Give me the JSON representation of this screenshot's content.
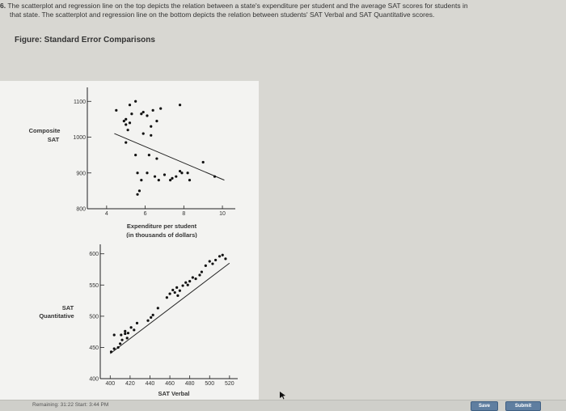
{
  "question": {
    "number": "6.",
    "line1": "The scatterplot and regression line on the top depicts the relation between a state's expenditure per student and the average SAT scores for students in",
    "line2": "that state. The scatterplot and regression line on the bottom depicts the relation between students' SAT Verbal and SAT Quantitative scores."
  },
  "figure_title": "Figure: Standard Error Comparisons",
  "chart_data": [
    {
      "type": "scatter",
      "xlabel": "Expenditure per student",
      "xlabel2": "(in thousands of dollars)",
      "ylabel": "Composite",
      "ylabel2": "SAT",
      "xlim": [
        3,
        10.5
      ],
      "ylim": [
        800,
        1130
      ],
      "x_ticks": [
        "4",
        "6",
        "8",
        "10"
      ],
      "x_tick_values": [
        4,
        6,
        8,
        10
      ],
      "y_ticks": [
        "800",
        "900",
        "1000",
        "1100"
      ],
      "y_tick_values": [
        800,
        900,
        1000,
        1100
      ],
      "regression": [
        [
          4.4,
          1010
        ],
        [
          10.1,
          880
        ]
      ],
      "points": [
        [
          4.5,
          1075
        ],
        [
          5.2,
          1090
        ],
        [
          5.5,
          1100
        ],
        [
          5.0,
          1050
        ],
        [
          5.2,
          1040
        ],
        [
          4.9,
          1045
        ],
        [
          5.0,
          1035
        ],
        [
          5.1,
          1020
        ],
        [
          5.3,
          1065
        ],
        [
          5.8,
          1065
        ],
        [
          5.9,
          1070
        ],
        [
          6.1,
          1060
        ],
        [
          6.4,
          1075
        ],
        [
          6.6,
          1045
        ],
        [
          6.3,
          1030
        ],
        [
          5.9,
          1010
        ],
        [
          6.3,
          1005
        ],
        [
          5.0,
          985
        ],
        [
          5.5,
          950
        ],
        [
          6.2,
          950
        ],
        [
          6.6,
          940
        ],
        [
          6.1,
          900
        ],
        [
          6.5,
          890
        ],
        [
          6.7,
          880
        ],
        [
          7.0,
          895
        ],
        [
          7.3,
          880
        ],
        [
          7.6,
          890
        ],
        [
          7.9,
          900
        ],
        [
          7.4,
          885
        ],
        [
          8.2,
          900
        ],
        [
          8.3,
          880
        ],
        [
          5.6,
          900
        ],
        [
          5.8,
          880
        ],
        [
          5.7,
          850
        ],
        [
          5.6,
          840
        ],
        [
          9.0,
          930
        ],
        [
          9.6,
          890
        ],
        [
          7.8,
          905
        ],
        [
          6.8,
          1080
        ],
        [
          7.8,
          1090
        ]
      ]
    },
    {
      "type": "scatter",
      "xlabel": "SAT Verbal",
      "ylabel": "SAT",
      "ylabel2": "Quantitative",
      "xlim": [
        390,
        525
      ],
      "ylim": [
        400,
        610
      ],
      "x_ticks": [
        "400",
        "420",
        "440",
        "460",
        "480",
        "500",
        "520"
      ],
      "x_tick_values": [
        400,
        420,
        440,
        460,
        480,
        500,
        520
      ],
      "y_ticks": [
        "400",
        "450",
        "500",
        "550",
        "600"
      ],
      "y_tick_values": [
        400,
        450,
        500,
        550,
        600
      ],
      "regression": [
        [
          400,
          440
        ],
        [
          520,
          585
        ]
      ],
      "points": [
        [
          401,
          443
        ],
        [
          404,
          448
        ],
        [
          408,
          450
        ],
        [
          410,
          456
        ],
        [
          411,
          470
        ],
        [
          412,
          462
        ],
        [
          415,
          476
        ],
        [
          417,
          465
        ],
        [
          418,
          473
        ],
        [
          421,
          482
        ],
        [
          424,
          478
        ],
        [
          427,
          489
        ],
        [
          438,
          493
        ],
        [
          441,
          498
        ],
        [
          443,
          502
        ],
        [
          448,
          513
        ],
        [
          457,
          530
        ],
        [
          460,
          536
        ],
        [
          463,
          542
        ],
        [
          465,
          538
        ],
        [
          467,
          546
        ],
        [
          468,
          533
        ],
        [
          470,
          541
        ],
        [
          473,
          549
        ],
        [
          476,
          554
        ],
        [
          478,
          550
        ],
        [
          480,
          556
        ],
        [
          483,
          562
        ],
        [
          486,
          560
        ],
        [
          490,
          566
        ],
        [
          492,
          571
        ],
        [
          496,
          581
        ],
        [
          500,
          588
        ],
        [
          503,
          584
        ],
        [
          506,
          590
        ],
        [
          510,
          596
        ],
        [
          513,
          598
        ],
        [
          516,
          592
        ],
        [
          404,
          470
        ],
        [
          415,
          472
        ]
      ]
    }
  ],
  "footer": {
    "remaining": "Remaining: 31:22 Start: 3:44 PM",
    "save_label": "Save",
    "submit_label": "Submit"
  },
  "colors": {
    "page_bg": "#d8d7d2",
    "panel_bg": "#f1f1ef",
    "button": "#5f7ea0"
  }
}
